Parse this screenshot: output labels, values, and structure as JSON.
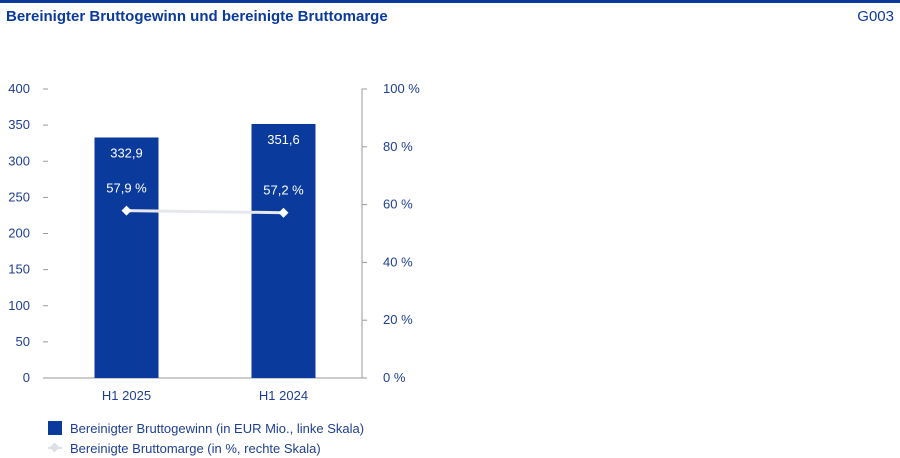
{
  "header": {
    "title": "Bereinigter Bruttogewinn und bereinigte Bruttomarge",
    "code": "G003"
  },
  "chart_data": {
    "type": "bar",
    "categories": [
      "H1 2025",
      "H1 2024"
    ],
    "series": [
      {
        "name": "Bereinigter Bruttogewinn (in EUR Mio., linke Skala)",
        "axis": "left",
        "type": "bar",
        "values": [
          332.9,
          351.6
        ],
        "labels": [
          "332,9",
          "351,6"
        ],
        "color": "#0a3a9c"
      },
      {
        "name": "Bereinigte Bruttomarge (in %, rechte Skala)",
        "axis": "right",
        "type": "line",
        "values": [
          57.9,
          57.2
        ],
        "labels": [
          "57,9 %",
          "57,2 %"
        ],
        "color": "#e6e8ee"
      }
    ],
    "y_left": {
      "ylim": [
        0,
        400
      ],
      "ticks": [
        0,
        50,
        100,
        150,
        200,
        250,
        300,
        350,
        400
      ]
    },
    "y_right": {
      "ylim": [
        0,
        100
      ],
      "ticks": [
        "0 %",
        "20 %",
        "40 %",
        "60 %",
        "80 %",
        "100 %"
      ]
    },
    "legend_position": "bottom-left"
  }
}
